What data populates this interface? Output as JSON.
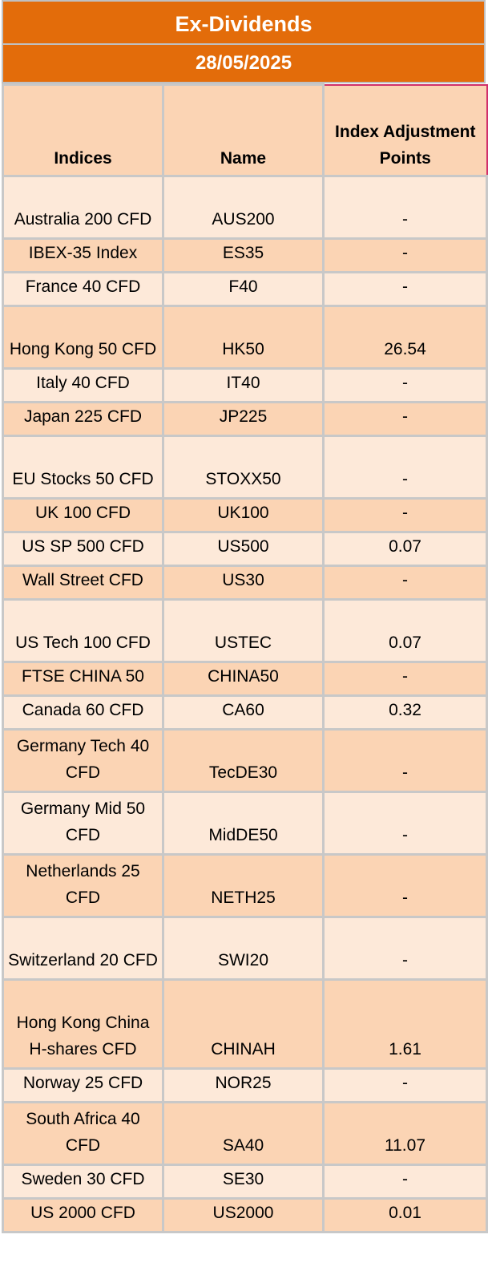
{
  "title": "Ex-Dividends",
  "date": "28/05/2025",
  "headers": {
    "indices": "Indices",
    "name": "Name",
    "adjustment": "Index Adjustment Points"
  },
  "colors": {
    "banner": "#e36c0a",
    "row_light": "#fde9d9",
    "row_dark": "#fbd4b4",
    "highlight_border": "#d0306a"
  },
  "rows": [
    {
      "index": "Australia 200 CFD",
      "name": "AUS200",
      "points": "-"
    },
    {
      "index": "IBEX-35 Index",
      "name": "ES35",
      "points": "-"
    },
    {
      "index": "France 40 CFD",
      "name": "F40",
      "points": "-"
    },
    {
      "index": "Hong Kong 50 CFD",
      "name": "HK50",
      "points": "26.54"
    },
    {
      "index": "Italy 40 CFD",
      "name": "IT40",
      "points": "-"
    },
    {
      "index": "Japan 225 CFD",
      "name": "JP225",
      "points": "-"
    },
    {
      "index": "EU Stocks 50 CFD",
      "name": "STOXX50",
      "points": "-"
    },
    {
      "index": "UK 100 CFD",
      "name": "UK100",
      "points": "-"
    },
    {
      "index": "US SP 500 CFD",
      "name": "US500",
      "points": "0.07"
    },
    {
      "index": "Wall Street CFD",
      "name": "US30",
      "points": "-"
    },
    {
      "index": "US Tech 100 CFD",
      "name": "USTEC",
      "points": "0.07"
    },
    {
      "index": "FTSE CHINA 50",
      "name": "CHINA50",
      "points": "-"
    },
    {
      "index": "Canada 60 CFD",
      "name": "CA60",
      "points": "0.32"
    },
    {
      "index": "Germany Tech 40 CFD",
      "name": "TecDE30",
      "points": "-"
    },
    {
      "index": "Germany Mid 50 CFD",
      "name": "MidDE50",
      "points": "-"
    },
    {
      "index": "Netherlands 25 CFD",
      "name": "NETH25",
      "points": "-"
    },
    {
      "index": "Switzerland 20 CFD",
      "name": "SWI20",
      "points": "-"
    },
    {
      "index": "Hong Kong China H-shares CFD",
      "name": "CHINAH",
      "points": "1.61"
    },
    {
      "index": "Norway 25 CFD",
      "name": "NOR25",
      "points": "-"
    },
    {
      "index": "South Africa 40 CFD",
      "name": "SA40",
      "points": "11.07"
    },
    {
      "index": "Sweden 30 CFD",
      "name": "SE30",
      "points": "-"
    },
    {
      "index": "US 2000 CFD",
      "name": "US2000",
      "points": "0.01"
    }
  ]
}
